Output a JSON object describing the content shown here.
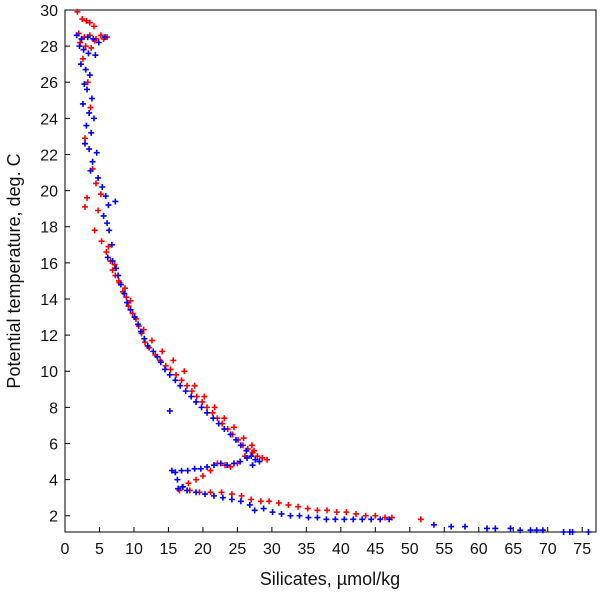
{
  "chart_data": {
    "type": "scatter",
    "title": "",
    "xlabel": "Silicates, µmol/kg",
    "ylabel": "Potential temperature, deg. C",
    "xlim": [
      0,
      77
    ],
    "ylim": [
      1.1,
      30
    ],
    "x_ticks": [
      0,
      5,
      10,
      15,
      20,
      25,
      30,
      35,
      40,
      45,
      50,
      55,
      60,
      65,
      70,
      75
    ],
    "y_ticks": [
      2,
      4,
      6,
      8,
      10,
      12,
      14,
      16,
      18,
      20,
      22,
      24,
      26,
      28,
      30
    ],
    "grid": false,
    "marker": "+",
    "series": [
      {
        "color": "#ff0000",
        "points": [
          [
            1.8,
            29.9
          ],
          [
            2.5,
            29.5
          ],
          [
            3.1,
            29.4
          ],
          [
            3.6,
            29.3
          ],
          [
            4.2,
            29.1
          ],
          [
            2.0,
            28.7
          ],
          [
            2.8,
            28.5
          ],
          [
            3.6,
            28.6
          ],
          [
            4.5,
            28.4
          ],
          [
            5.2,
            28.6
          ],
          [
            6.1,
            28.5
          ],
          [
            2.2,
            28.2
          ],
          [
            3.0,
            28.0
          ],
          [
            3.8,
            27.9
          ],
          [
            4.3,
            28.3
          ],
          [
            5.6,
            28.4
          ],
          [
            2.6,
            27.3
          ],
          [
            3.3,
            26.0
          ],
          [
            3.7,
            24.6
          ],
          [
            2.9,
            22.9
          ],
          [
            4.0,
            21.2
          ],
          [
            4.5,
            20.4
          ],
          [
            3.2,
            19.6
          ],
          [
            5.2,
            19.8
          ],
          [
            2.9,
            19.1
          ],
          [
            4.8,
            18.9
          ],
          [
            4.3,
            17.8
          ],
          [
            5.3,
            17.2
          ],
          [
            6.0,
            16.6
          ],
          [
            6.6,
            16.1
          ],
          [
            6.9,
            15.6
          ],
          [
            7.3,
            15.3
          ],
          [
            7.9,
            14.9
          ],
          [
            8.4,
            14.4
          ],
          [
            8.9,
            14.1
          ],
          [
            9.2,
            13.6
          ],
          [
            9.8,
            13.2
          ],
          [
            10.3,
            12.9
          ],
          [
            10.7,
            12.5
          ],
          [
            11.1,
            12.1
          ],
          [
            11.6,
            11.6
          ],
          [
            12.2,
            11.3
          ],
          [
            13.1,
            10.9
          ],
          [
            13.8,
            10.6
          ],
          [
            14.6,
            10.3
          ],
          [
            15.3,
            10.1
          ],
          [
            16.1,
            9.8
          ],
          [
            16.9,
            9.5
          ],
          [
            17.7,
            9.2
          ],
          [
            18.4,
            8.9
          ],
          [
            19.1,
            8.6
          ],
          [
            19.9,
            8.3
          ],
          [
            20.6,
            8.0
          ],
          [
            21.4,
            7.7
          ],
          [
            22.1,
            7.4
          ],
          [
            22.8,
            7.1
          ],
          [
            23.6,
            6.8
          ],
          [
            24.3,
            6.5
          ],
          [
            25.1,
            6.2
          ],
          [
            25.8,
            5.9
          ],
          [
            26.5,
            5.7
          ],
          [
            27.2,
            5.5
          ],
          [
            27.9,
            5.3
          ],
          [
            28.6,
            5.2
          ],
          [
            29.3,
            5.1
          ],
          [
            27.4,
            5.6
          ],
          [
            26.1,
            5.3
          ],
          [
            25.0,
            4.9
          ],
          [
            24.0,
            4.7
          ],
          [
            23.2,
            4.8
          ],
          [
            22.1,
            4.9
          ],
          [
            21.1,
            4.5
          ],
          [
            20.0,
            4.2
          ],
          [
            19.0,
            4.0
          ],
          [
            17.9,
            3.8
          ],
          [
            17.0,
            3.6
          ],
          [
            16.6,
            3.4
          ],
          [
            18.1,
            3.4
          ],
          [
            19.5,
            3.3
          ],
          [
            21.1,
            3.3
          ],
          [
            22.7,
            3.3
          ],
          [
            24.2,
            3.2
          ],
          [
            25.6,
            3.1
          ],
          [
            27.0,
            2.9
          ],
          [
            28.4,
            2.8
          ],
          [
            29.6,
            2.8
          ],
          [
            31.0,
            2.7
          ],
          [
            32.4,
            2.6
          ],
          [
            33.8,
            2.5
          ],
          [
            35.2,
            2.4
          ],
          [
            36.6,
            2.3
          ],
          [
            38.0,
            2.3
          ],
          [
            39.4,
            2.2
          ],
          [
            40.8,
            2.2
          ],
          [
            42.2,
            2.1
          ],
          [
            43.6,
            2.0
          ],
          [
            45.0,
            2.0
          ],
          [
            46.4,
            1.9
          ],
          [
            47.4,
            1.9
          ],
          [
            51.6,
            1.8
          ],
          [
            6.3,
            16.9
          ],
          [
            7.2,
            15.9
          ],
          [
            7.8,
            15.0
          ],
          [
            8.7,
            14.6
          ],
          [
            9.5,
            13.9
          ],
          [
            10.1,
            13.0
          ],
          [
            11.4,
            12.3
          ],
          [
            12.6,
            11.7
          ],
          [
            14.1,
            11.1
          ],
          [
            15.7,
            10.6
          ],
          [
            17.3,
            10.0
          ],
          [
            18.8,
            9.2
          ],
          [
            20.2,
            8.6
          ],
          [
            21.7,
            8.0
          ],
          [
            23.1,
            7.4
          ],
          [
            24.5,
            6.9
          ],
          [
            25.9,
            6.3
          ],
          [
            27.1,
            5.9
          ]
        ]
      },
      {
        "color": "#0000ff",
        "points": [
          [
            1.7,
            28.6
          ],
          [
            2.4,
            28.4
          ],
          [
            3.3,
            28.5
          ],
          [
            4.1,
            28.4
          ],
          [
            4.9,
            28.2
          ],
          [
            5.8,
            28.5
          ],
          [
            2.1,
            28.0
          ],
          [
            2.7,
            27.8
          ],
          [
            3.4,
            27.6
          ],
          [
            4.4,
            27.5
          ],
          [
            2.3,
            27.0
          ],
          [
            3.0,
            26.7
          ],
          [
            3.6,
            26.4
          ],
          [
            2.8,
            25.9
          ],
          [
            3.2,
            25.6
          ],
          [
            3.9,
            25.1
          ],
          [
            2.6,
            24.8
          ],
          [
            3.5,
            24.3
          ],
          [
            4.2,
            24.0
          ],
          [
            3.1,
            23.6
          ],
          [
            3.8,
            23.2
          ],
          [
            2.9,
            22.6
          ],
          [
            3.5,
            22.3
          ],
          [
            4.6,
            22.1
          ],
          [
            4.0,
            21.6
          ],
          [
            3.7,
            21.1
          ],
          [
            4.8,
            20.7
          ],
          [
            5.4,
            20.2
          ],
          [
            5.9,
            19.7
          ],
          [
            6.3,
            19.2
          ],
          [
            7.3,
            19.4
          ],
          [
            5.6,
            18.6
          ],
          [
            6.1,
            18.2
          ],
          [
            6.4,
            17.8
          ],
          [
            6.8,
            17.0
          ],
          [
            6.2,
            16.3
          ],
          [
            6.9,
            16.1
          ],
          [
            7.4,
            15.7
          ],
          [
            7.7,
            15.3
          ],
          [
            8.1,
            14.8
          ],
          [
            8.6,
            14.3
          ],
          [
            9.0,
            13.8
          ],
          [
            9.5,
            13.4
          ],
          [
            10.1,
            13.0
          ],
          [
            10.6,
            12.6
          ],
          [
            11.0,
            12.2
          ],
          [
            11.5,
            11.8
          ],
          [
            12.0,
            11.4
          ],
          [
            12.8,
            11.1
          ],
          [
            13.4,
            10.8
          ],
          [
            13.9,
            10.5
          ],
          [
            14.5,
            10.1
          ],
          [
            15.2,
            9.8
          ],
          [
            16.0,
            9.5
          ],
          [
            16.7,
            9.2
          ],
          [
            17.5,
            8.9
          ],
          [
            18.3,
            8.6
          ],
          [
            19.0,
            8.3
          ],
          [
            19.8,
            8.0
          ],
          [
            20.6,
            7.7
          ],
          [
            21.5,
            7.4
          ],
          [
            22.3,
            7.1
          ],
          [
            23.1,
            6.8
          ],
          [
            24.0,
            6.5
          ],
          [
            24.8,
            6.2
          ],
          [
            25.5,
            5.9
          ],
          [
            26.3,
            5.6
          ],
          [
            27.0,
            5.3
          ],
          [
            27.6,
            5.1
          ],
          [
            28.2,
            5.0
          ],
          [
            15.2,
            7.8
          ],
          [
            27.2,
            4.8
          ],
          [
            26.4,
            5.2
          ],
          [
            25.4,
            5.0
          ],
          [
            24.5,
            4.9
          ],
          [
            23.5,
            4.8
          ],
          [
            22.6,
            4.9
          ],
          [
            21.6,
            4.8
          ],
          [
            20.6,
            4.7
          ],
          [
            19.7,
            4.6
          ],
          [
            18.8,
            4.6
          ],
          [
            17.8,
            4.5
          ],
          [
            16.9,
            4.5
          ],
          [
            16.0,
            4.4
          ],
          [
            15.5,
            4.5
          ],
          [
            16.3,
            4.0
          ],
          [
            17.1,
            3.6
          ],
          [
            16.4,
            3.5
          ],
          [
            17.7,
            3.4
          ],
          [
            19.0,
            3.3
          ],
          [
            20.3,
            3.2
          ],
          [
            21.6,
            3.1
          ],
          [
            22.9,
            3.0
          ],
          [
            24.2,
            2.9
          ],
          [
            25.5,
            2.8
          ],
          [
            26.8,
            2.6
          ],
          [
            27.5,
            2.3
          ],
          [
            28.8,
            2.4
          ],
          [
            30.1,
            2.2
          ],
          [
            31.4,
            2.1
          ],
          [
            32.7,
            2.0
          ],
          [
            34.0,
            2.0
          ],
          [
            35.3,
            1.9
          ],
          [
            36.6,
            1.9
          ],
          [
            37.9,
            1.8
          ],
          [
            39.2,
            1.8
          ],
          [
            40.5,
            1.8
          ],
          [
            41.8,
            1.8
          ],
          [
            43.1,
            1.8
          ],
          [
            44.4,
            1.8
          ],
          [
            45.7,
            1.8
          ],
          [
            47.0,
            1.8
          ],
          [
            53.5,
            1.5
          ],
          [
            56.0,
            1.4
          ],
          [
            58.0,
            1.4
          ],
          [
            61.2,
            1.3
          ],
          [
            62.4,
            1.3
          ],
          [
            64.6,
            1.3
          ],
          [
            66.0,
            1.2
          ],
          [
            67.5,
            1.2
          ],
          [
            68.4,
            1.2
          ],
          [
            69.3,
            1.2
          ],
          [
            72.3,
            1.1
          ],
          [
            73.2,
            1.1
          ],
          [
            73.6,
            1.1
          ],
          [
            75.9,
            1.1
          ]
        ]
      }
    ]
  }
}
